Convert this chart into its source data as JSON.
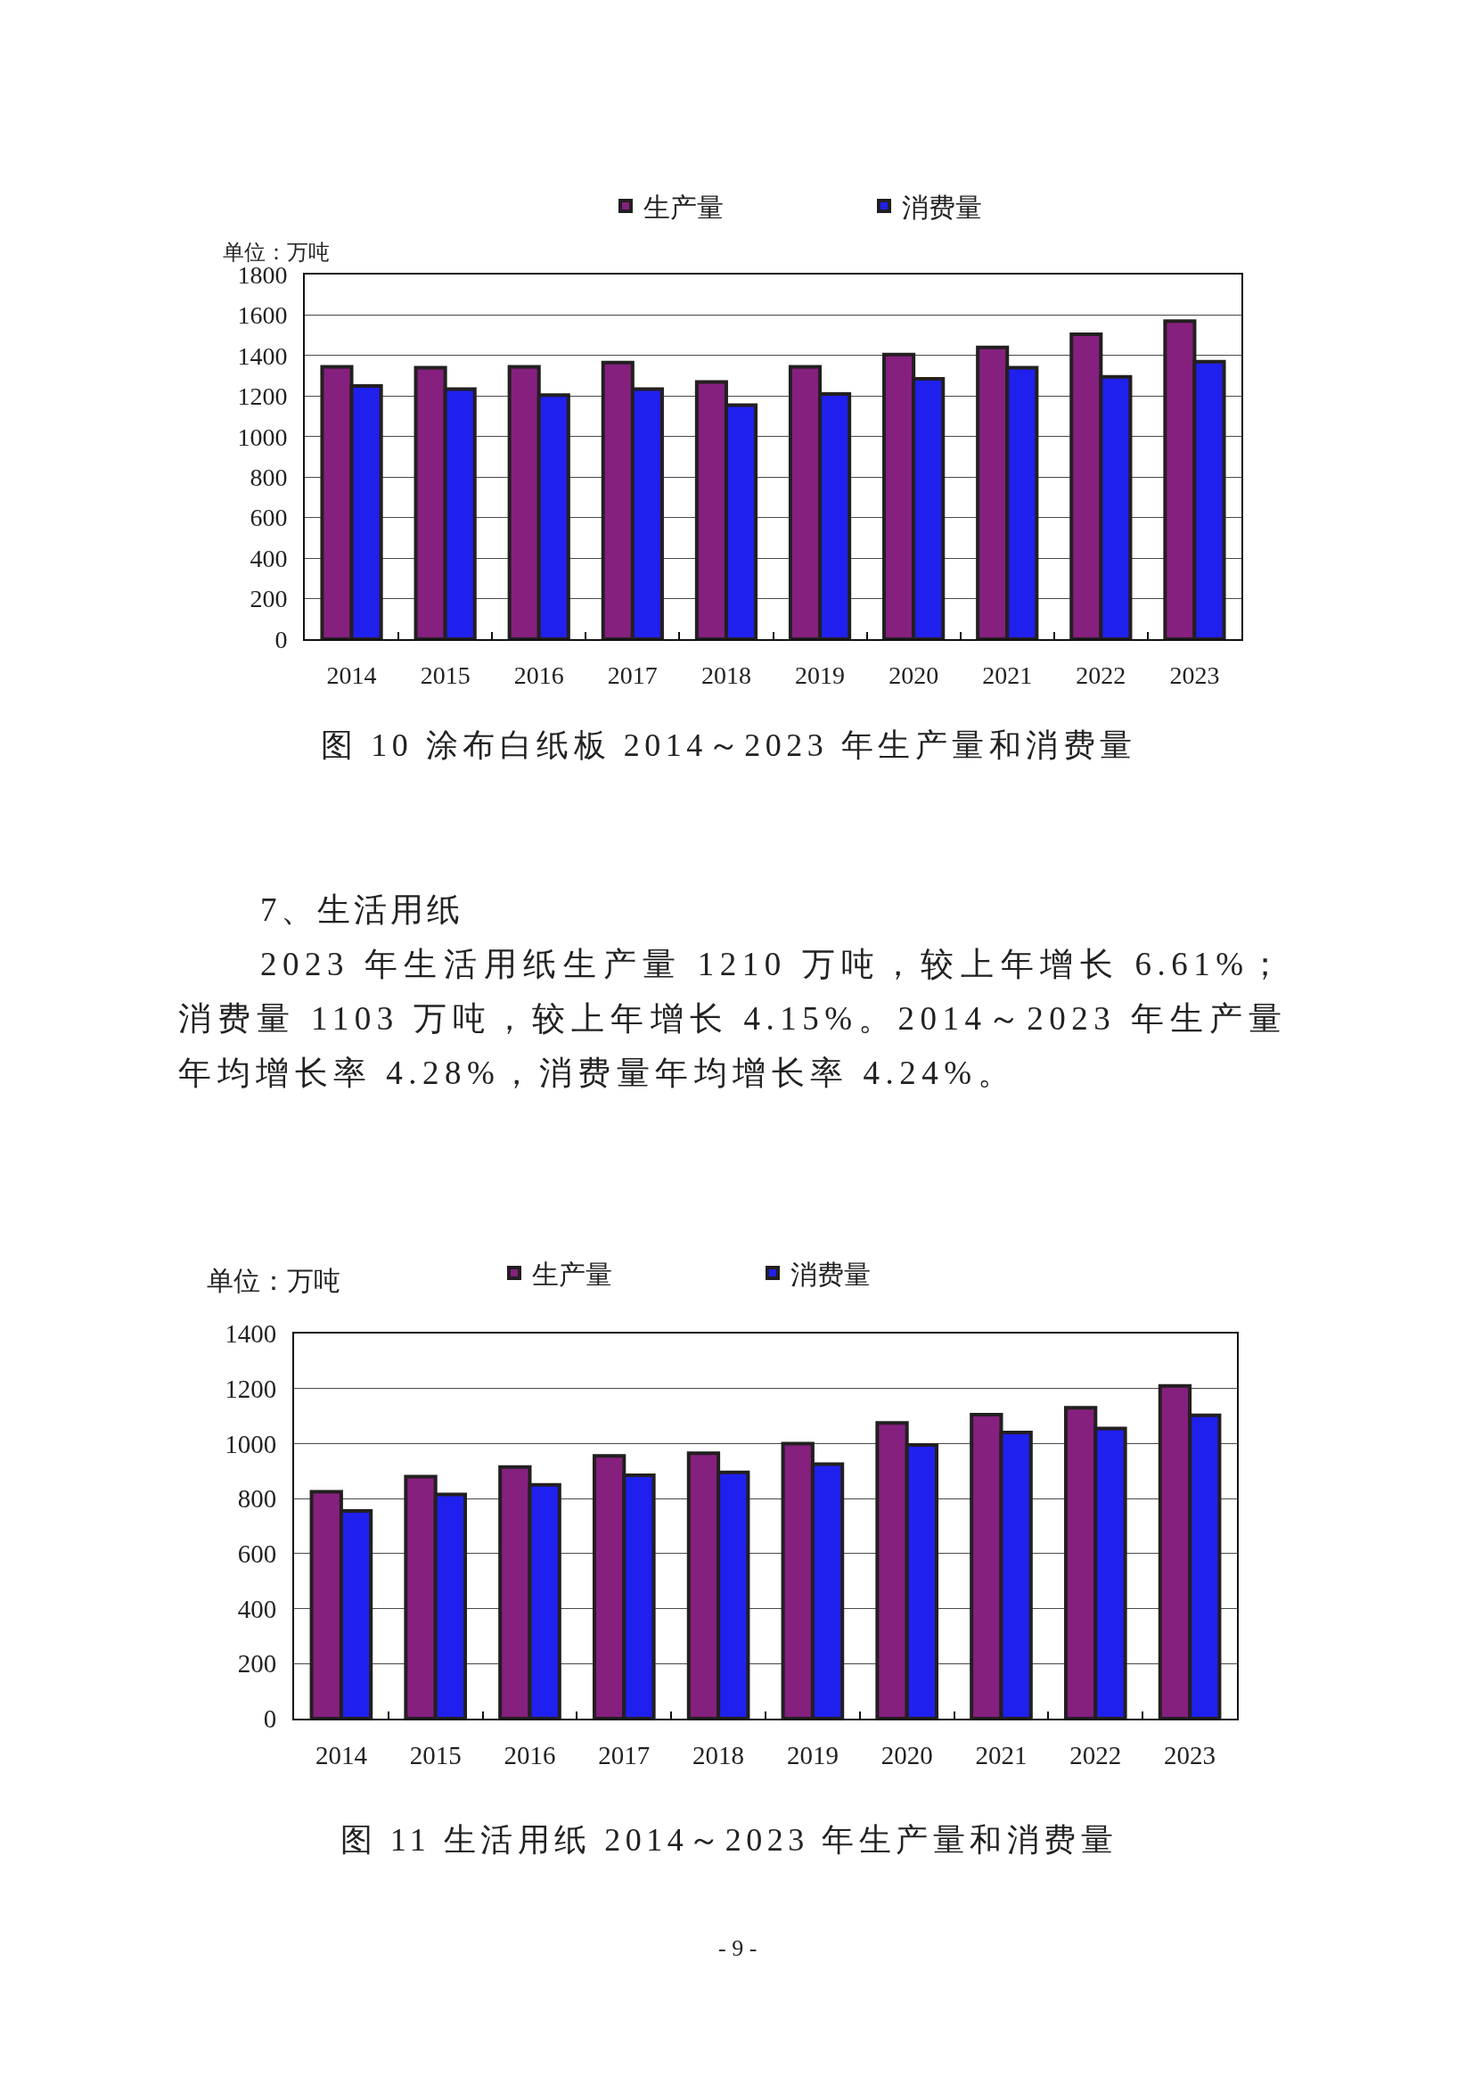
{
  "chart_data": [
    {
      "type": "bar",
      "title": "图 10 涂布白纸板 2014～2023 年生产量和消费量",
      "ylabel": "单位：万吨",
      "categories": [
        "2014",
        "2015",
        "2016",
        "2017",
        "2018",
        "2019",
        "2020",
        "2021",
        "2022",
        "2023"
      ],
      "series": [
        {
          "name": "生产量",
          "color": "#86207f",
          "values": [
            1345,
            1340,
            1345,
            1365,
            1270,
            1345,
            1405,
            1440,
            1505,
            1570
          ]
        },
        {
          "name": "消费量",
          "color": "#2020ee",
          "values": [
            1250,
            1235,
            1205,
            1235,
            1155,
            1210,
            1285,
            1340,
            1295,
            1370
          ]
        }
      ],
      "ylim": [
        0,
        1800
      ],
      "yticks": [
        0,
        200,
        400,
        600,
        800,
        1000,
        1200,
        1400,
        1600,
        1800
      ],
      "grid": "y",
      "legend": "top"
    },
    {
      "type": "other",
      "title": "7、生活用纸",
      "annotations": [
        "2023 年生活用纸生产量 1210 万吨，较上年增长 6.61%；消费量 1103 万吨，较上年增长 4.15%。2014～2023 年生产量年均增长率 4.28%，消费量年均增长率 4.24%。"
      ]
    },
    {
      "type": "bar",
      "title": "图 11 生活用纸 2014～2023 年生产量和消费量",
      "ylabel": "单位：万吨",
      "categories": [
        "2014",
        "2015",
        "2016",
        "2017",
        "2018",
        "2019",
        "2020",
        "2021",
        "2022",
        "2023"
      ],
      "series": [
        {
          "name": "生产量",
          "color": "#86207f",
          "values": [
            825,
            880,
            915,
            955,
            965,
            1000,
            1075,
            1105,
            1130,
            1210
          ]
        },
        {
          "name": "消费量",
          "color": "#2020ee",
          "values": [
            755,
            815,
            850,
            885,
            895,
            925,
            995,
            1040,
            1055,
            1103
          ]
        }
      ],
      "ylim": [
        0,
        1400
      ],
      "yticks": [
        0,
        200,
        400,
        600,
        800,
        1000,
        1200,
        1400
      ],
      "grid": "y",
      "legend": "top",
      "annotations": [
        "- 9 -"
      ]
    }
  ]
}
